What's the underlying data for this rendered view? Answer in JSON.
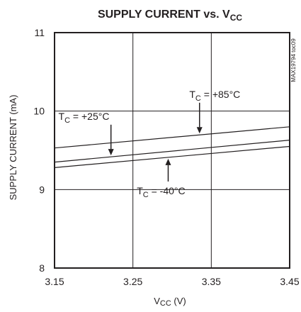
{
  "chart_data": {
    "type": "line",
    "title_main": "SUPPLY CURRENT vs. V",
    "title_sub": "CC",
    "xlabel_main": "V",
    "xlabel_sub": "CC",
    "xlabel_unit": " (V)",
    "ylabel": "SUPPLY CURRENT (mA)",
    "xlim": [
      3.15,
      3.45
    ],
    "ylim": [
      8,
      11
    ],
    "xticks": [
      "3.15",
      "3.25",
      "3.35",
      "3.45"
    ],
    "yticks": [
      "8",
      "9",
      "10",
      "11"
    ],
    "grid": true,
    "figure_id": "MAX19794 toc09",
    "series": [
      {
        "name": "+85°C",
        "x": [
          3.15,
          3.45
        ],
        "y": [
          9.53,
          9.8
        ]
      },
      {
        "name": "+25°C",
        "x": [
          3.15,
          3.45
        ],
        "y": [
          9.35,
          9.63
        ]
      },
      {
        "name": "-40°C",
        "x": [
          3.15,
          3.45
        ],
        "y": [
          9.28,
          9.55
        ]
      }
    ],
    "annotations": [
      {
        "label": "T",
        "sub": "C",
        "text": " = +85°C",
        "series": 0
      },
      {
        "label": "T",
        "sub": "C",
        "text": " = +25°C",
        "series": 1
      },
      {
        "label": "T",
        "sub": "C",
        "text": " = -40°C",
        "series": 2
      }
    ]
  }
}
